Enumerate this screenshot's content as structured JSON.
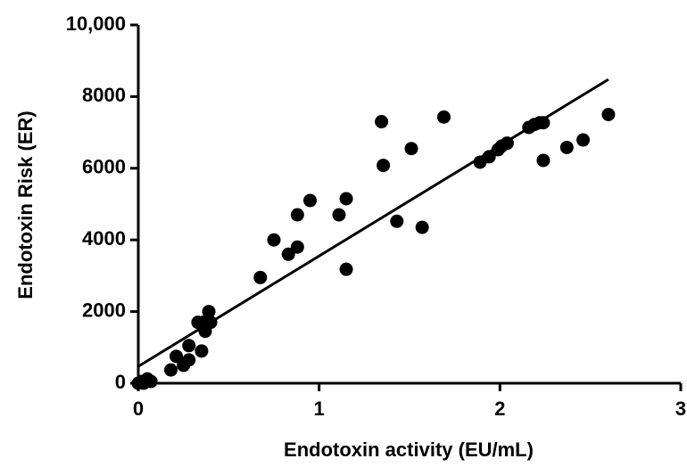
{
  "chart_data": {
    "type": "scatter",
    "x_label": "Endotoxin activity (EU/mL)",
    "y_label": "Endotoxin Risk (ER)",
    "x": [
      0,
      0.02,
      0.05,
      0.07,
      0.03,
      0.18,
      0.21,
      0.25,
      0.28,
      0.28,
      0.35,
      0.33,
      0.36,
      0.37,
      0.39,
      0.4,
      0.675,
      0.75,
      0.83,
      0.88,
      0.88,
      0.95,
      1.11,
      1.15,
      1.15,
      1.345,
      1.355,
      1.43,
      1.51,
      1.57,
      1.69,
      1.89,
      1.94,
      1.99,
      2.01,
      2.04,
      2.16,
      2.19,
      2.22,
      2.24,
      2.24,
      2.37,
      2.46,
      2.6
    ],
    "values": [
      0,
      50,
      120,
      50,
      0,
      370,
      750,
      500,
      650,
      1050,
      900,
      1700,
      1700,
      1450,
      2000,
      1700,
      2950,
      4000,
      3600,
      3800,
      4700,
      5100,
      4700,
      5150,
      3180,
      7300,
      6080,
      4520,
      6550,
      4350,
      7430,
      6170,
      6320,
      6520,
      6620,
      6700,
      7140,
      7220,
      7270,
      7270,
      6220,
      6580,
      6790,
      7500
    ],
    "color": "#000000",
    "trendline": {
      "x": [
        0,
        2.6
      ],
      "y": [
        470,
        8480
      ]
    },
    "xlim": [
      0,
      3
    ],
    "xticks": [
      0,
      1,
      2,
      3
    ],
    "ylim": [
      0,
      10000
    ],
    "yticks": [
      0,
      2000,
      4000,
      6000,
      8000,
      {
        "value": 10000,
        "label": "10,000"
      }
    ]
  }
}
